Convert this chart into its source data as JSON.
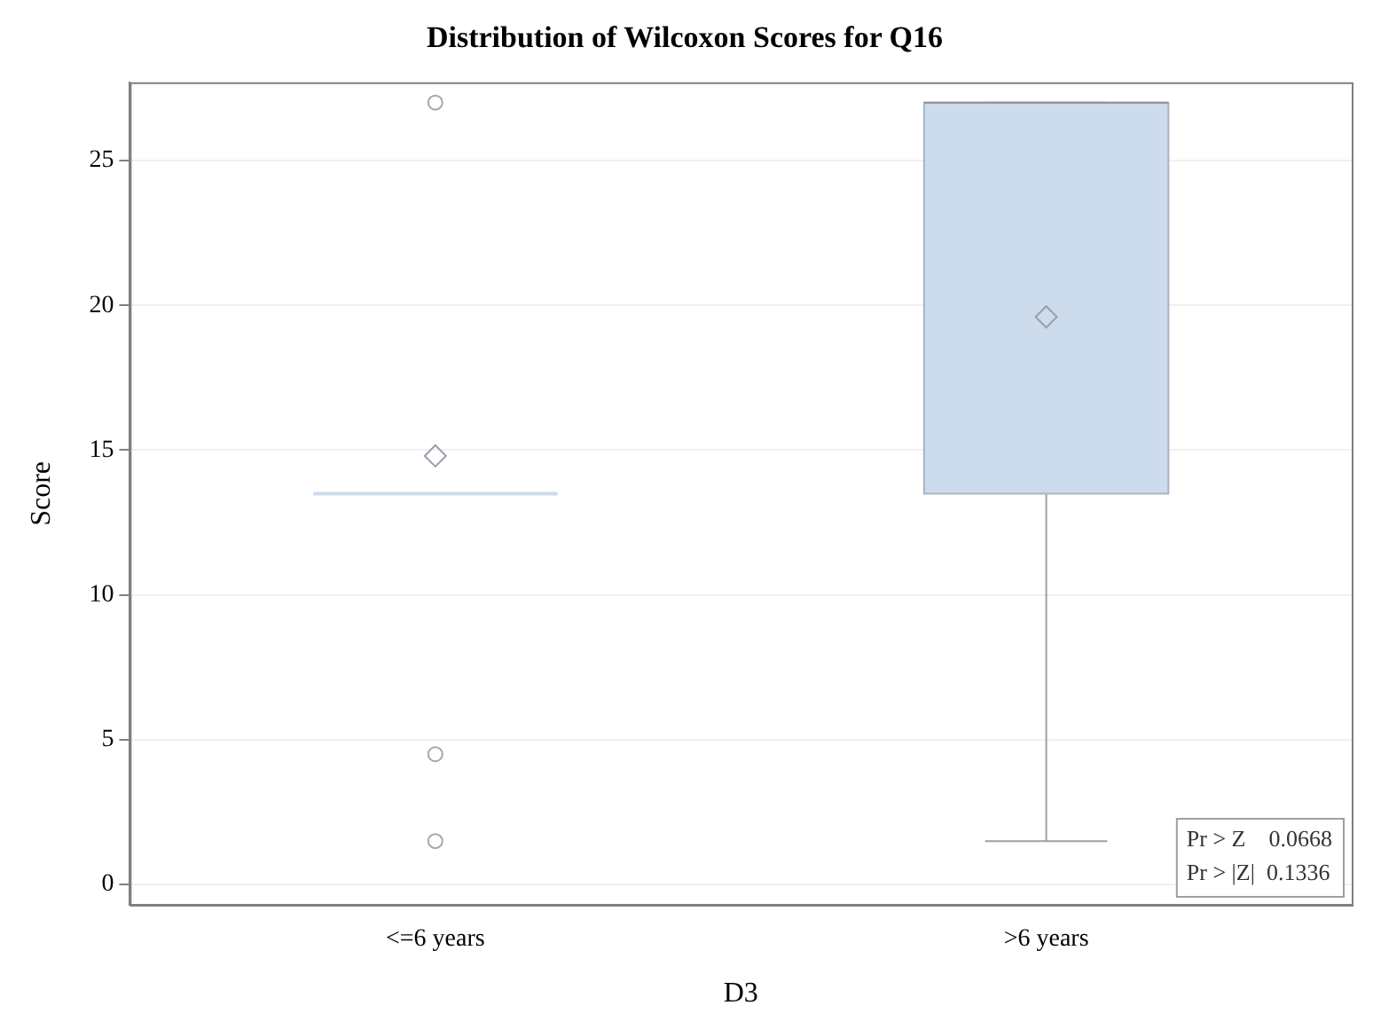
{
  "chart_data": {
    "type": "box",
    "title": "Distribution of Wilcoxon Scores for Q16",
    "xlabel": "D3",
    "ylabel": "Score",
    "categories": [
      "<=6 years",
      ">6 years"
    ],
    "color": "#cddcec",
    "boxes": [
      {
        "low": 13.5,
        "q1": 13.5,
        "median": 13.5,
        "q3": 13.5,
        "high": 13.5,
        "mean": 14.8,
        "outliers": [
          27,
          4.5,
          1.5
        ]
      },
      {
        "low": 1.5,
        "q1": 13.5,
        "median": 27,
        "q3": 27,
        "high": 27,
        "mean": 19.6
      }
    ],
    "ylim": [
      -0.7,
      27.7
    ],
    "yticks": [
      0,
      5,
      10,
      15,
      20,
      25
    ],
    "grid": "y",
    "legend": false,
    "annotations": [
      "Pr > Z    0.0668",
      "Pr > |Z|  0.1336"
    ]
  }
}
